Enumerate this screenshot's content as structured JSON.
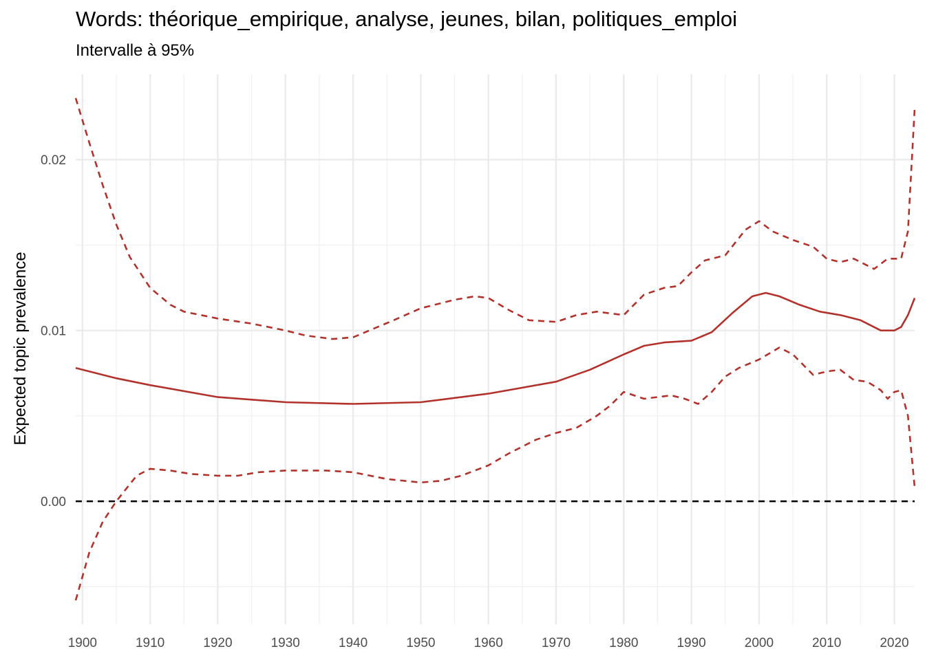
{
  "chart_data": {
    "type": "line",
    "title": "Words: théorique_empirique, analyse, jeunes, bilan, politiques_emploi",
    "subtitle": "Intervalle à 95%",
    "xlabel": "",
    "ylabel": "Expected topic prevalence",
    "xlim": [
      1899,
      2023
    ],
    "ylim": [
      -0.0072,
      0.025
    ],
    "x_ticks": [
      1900,
      1910,
      1920,
      1930,
      1940,
      1950,
      1960,
      1970,
      1980,
      1990,
      2000,
      2010,
      2020
    ],
    "y_ticks": [
      0.0,
      0.01,
      0.02
    ],
    "y_tick_labels": [
      "0.00",
      "0.01",
      "0.02"
    ],
    "grid": true,
    "reference_line": {
      "y": 0,
      "style": "dashed",
      "color": "#000000"
    },
    "line_color": "#b2322b",
    "series": [
      {
        "role": "estimate",
        "style": "solid",
        "x": [
          1899,
          1905,
          1910,
          1920,
          1930,
          1940,
          1950,
          1960,
          1970,
          1975,
          1980,
          1983,
          1986,
          1990,
          1993,
          1996,
          1999,
          2001,
          2003,
          2006,
          2009,
          2012,
          2015,
          2018,
          2020,
          2021,
          2022,
          2023
        ],
        "y": [
          0.0078,
          0.0072,
          0.0068,
          0.0061,
          0.0058,
          0.0057,
          0.0058,
          0.0063,
          0.007,
          0.0077,
          0.0086,
          0.0091,
          0.0093,
          0.0094,
          0.0099,
          0.011,
          0.012,
          0.0122,
          0.012,
          0.0115,
          0.0111,
          0.0109,
          0.0106,
          0.01,
          0.01,
          0.0102,
          0.0109,
          0.0119
        ]
      },
      {
        "role": "upper_95",
        "style": "dashed",
        "x": [
          1899,
          1901,
          1903,
          1905,
          1907,
          1910,
          1913,
          1915,
          1920,
          1925,
          1930,
          1933,
          1937,
          1940,
          1943,
          1946,
          1950,
          1955,
          1958,
          1960,
          1963,
          1966,
          1970,
          1973,
          1976,
          1980,
          1983,
          1986,
          1988,
          1990,
          1992,
          1995,
          1998,
          2000,
          2002,
          2005,
          2008,
          2010,
          2012,
          2014,
          2017,
          2019,
          2021,
          2022,
          2023
        ],
        "y": [
          0.0236,
          0.021,
          0.0185,
          0.0162,
          0.0143,
          0.0125,
          0.0115,
          0.0111,
          0.0107,
          0.0104,
          0.01,
          0.0097,
          0.0095,
          0.0096,
          0.0101,
          0.0106,
          0.0113,
          0.0118,
          0.012,
          0.0119,
          0.0112,
          0.0106,
          0.0105,
          0.0109,
          0.0111,
          0.0109,
          0.0121,
          0.0125,
          0.0126,
          0.0134,
          0.0141,
          0.0144,
          0.0159,
          0.0164,
          0.0158,
          0.0153,
          0.0149,
          0.0142,
          0.014,
          0.0142,
          0.0136,
          0.0142,
          0.0142,
          0.0158,
          0.023
        ]
      },
      {
        "role": "lower_95",
        "style": "dashed",
        "x": [
          1899,
          1901,
          1903,
          1905,
          1908,
          1910,
          1913,
          1916,
          1920,
          1923,
          1926,
          1930,
          1933,
          1936,
          1940,
          1945,
          1950,
          1953,
          1956,
          1958,
          1960,
          1963,
          1967,
          1970,
          1973,
          1976,
          1978,
          1980,
          1983,
          1987,
          1989,
          1991,
          1993,
          1995,
          1997,
          2000,
          2003,
          2005,
          2008,
          2010,
          2012,
          2014,
          2016,
          2018,
          2019,
          2020,
          2021,
          2022,
          2023
        ],
        "y": [
          -0.0058,
          -0.003,
          -0.0012,
          0.0,
          0.0015,
          0.0019,
          0.0018,
          0.0016,
          0.0015,
          0.0015,
          0.0017,
          0.0018,
          0.0018,
          0.0018,
          0.0017,
          0.0013,
          0.0011,
          0.0012,
          0.0015,
          0.0018,
          0.0021,
          0.0028,
          0.0036,
          0.004,
          0.0043,
          0.005,
          0.0056,
          0.0064,
          0.006,
          0.0062,
          0.006,
          0.0057,
          0.0064,
          0.0073,
          0.0078,
          0.0083,
          0.009,
          0.0086,
          0.0074,
          0.0076,
          0.0077,
          0.0071,
          0.007,
          0.0065,
          0.006,
          0.0064,
          0.0065,
          0.005,
          0.0008
        ]
      }
    ]
  }
}
